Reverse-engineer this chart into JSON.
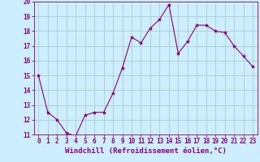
{
  "x": [
    0,
    1,
    2,
    3,
    4,
    5,
    6,
    7,
    8,
    9,
    10,
    11,
    12,
    13,
    14,
    15,
    16,
    17,
    18,
    19,
    20,
    21,
    22,
    23
  ],
  "y": [
    15.0,
    12.5,
    12.0,
    11.1,
    10.9,
    12.3,
    12.5,
    12.5,
    13.8,
    15.5,
    17.6,
    17.2,
    18.2,
    18.8,
    19.8,
    16.5,
    17.3,
    18.4,
    18.4,
    18.0,
    17.9,
    17.0,
    16.3,
    15.6
  ],
  "line_color": "#880088",
  "marker": "*",
  "marker_size": 3,
  "bg_color": "#cceeff",
  "grid_color": "#aacccc",
  "xlabel": "Windchill (Refroidissement éolien,°C)",
  "xlabel_fontsize": 6.5,
  "tick_fontsize": 5.5,
  "ylim": [
    11,
    20
  ],
  "xlim": [
    -0.5,
    23.5
  ],
  "yticks": [
    11,
    12,
    13,
    14,
    15,
    16,
    17,
    18,
    19,
    20
  ],
  "xticks": [
    0,
    1,
    2,
    3,
    4,
    5,
    6,
    7,
    8,
    9,
    10,
    11,
    12,
    13,
    14,
    15,
    16,
    17,
    18,
    19,
    20,
    21,
    22,
    23
  ]
}
